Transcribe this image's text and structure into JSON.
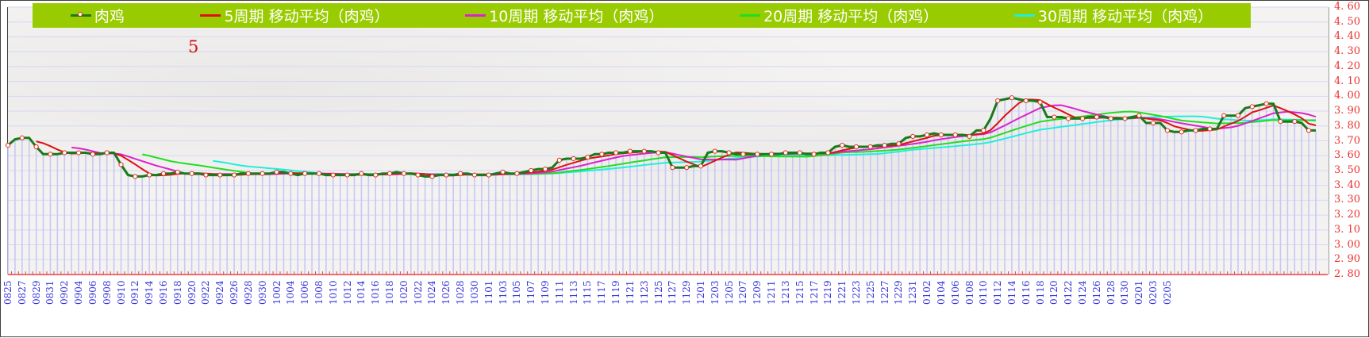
{
  "legend": {
    "items": [
      {
        "label": "肉鸡",
        "color": "#1a7a1a",
        "marker": true
      },
      {
        "label": "5周期 移动平均（肉鸡）",
        "color": "#dd1111",
        "marker": false
      },
      {
        "label": "10周期 移动平均（肉鸡）",
        "color": "#dd22cc",
        "marker": false
      },
      {
        "label": "20周期 移动平均（肉鸡）",
        "color": "#22dd22",
        "marker": false
      },
      {
        "label": "30周期 移动平均（肉鸡）",
        "color": "#22eedd",
        "marker": false
      }
    ],
    "background": "#99cc00"
  },
  "annotation": "5",
  "colors": {
    "price_line": "#1a7a1a",
    "marker_fill": "#ffffff",
    "marker_stroke": "#e03020",
    "bar": "#c8c8f4",
    "grid": "#d6d6f6",
    "y_tick": "#ee3030",
    "x_tick": "#3333dd",
    "ma5": "#dd1111",
    "ma10": "#dd22cc",
    "ma20": "#22dd22",
    "ma30": "#22eedd"
  },
  "chart_data": {
    "type": "line",
    "title": "",
    "xlabel": "",
    "ylabel": "",
    "ylim": [
      2.8,
      4.6
    ],
    "yticks": [
      "4.60",
      "4.50",
      "4.40",
      "4.30",
      "4.20",
      "4.10",
      "4.00",
      "3.90",
      "3.80",
      "3.70",
      "3.60",
      "3.50",
      "3.40",
      "3.30",
      "3.20",
      "3.10",
      "3.00",
      "2.90",
      "2.80"
    ],
    "grid": true,
    "legend_position": "top",
    "x_tick_labels": [
      "0825",
      "0827",
      "0829",
      "0831",
      "0902",
      "0904",
      "0906",
      "0908",
      "0910",
      "0912",
      "0914",
      "0916",
      "0918",
      "0920",
      "0922",
      "0924",
      "0926",
      "0928",
      "0930",
      "1002",
      "1004",
      "1006",
      "1008",
      "1010",
      "1012",
      "1014",
      "1016",
      "1018",
      "1020",
      "1022",
      "1024",
      "1026",
      "1028",
      "1030",
      "1101",
      "1103",
      "1105",
      "1107",
      "1109",
      "1111",
      "1113",
      "1115",
      "1117",
      "1119",
      "1121",
      "1123",
      "1125",
      "1127",
      "1129",
      "1201",
      "1203",
      "1205",
      "1207",
      "1209",
      "1211",
      "1213",
      "1215",
      "1217",
      "1219",
      "1221",
      "1223",
      "1225",
      "1227",
      "1229",
      "1231",
      "0102",
      "0104",
      "0106",
      "0108",
      "0110",
      "0112",
      "0114",
      "0116",
      "0118",
      "0120",
      "0122",
      "0124",
      "0126",
      "0128",
      "0130",
      "0201",
      "0203",
      "0205"
    ],
    "series": [
      {
        "name": "肉鸡",
        "values": [
          3.67,
          3.71,
          3.72,
          3.72,
          3.66,
          3.61,
          3.61,
          3.61,
          3.62,
          3.62,
          3.62,
          3.62,
          3.61,
          3.61,
          3.62,
          3.62,
          3.54,
          3.47,
          3.46,
          3.46,
          3.47,
          3.47,
          3.48,
          3.48,
          3.49,
          3.48,
          3.48,
          3.48,
          3.47,
          3.47,
          3.47,
          3.47,
          3.47,
          3.48,
          3.48,
          3.48,
          3.48,
          3.48,
          3.49,
          3.49,
          3.48,
          3.47,
          3.48,
          3.48,
          3.48,
          3.47,
          3.47,
          3.47,
          3.47,
          3.47,
          3.48,
          3.47,
          3.47,
          3.48,
          3.48,
          3.49,
          3.48,
          3.48,
          3.47,
          3.46,
          3.46,
          3.47,
          3.47,
          3.47,
          3.48,
          3.48,
          3.47,
          3.47,
          3.47,
          3.48,
          3.49,
          3.48,
          3.48,
          3.49,
          3.5,
          3.51,
          3.51,
          3.52,
          3.57,
          3.58,
          3.58,
          3.58,
          3.59,
          3.61,
          3.61,
          3.62,
          3.62,
          3.62,
          3.63,
          3.63,
          3.63,
          3.63,
          3.62,
          3.62,
          3.52,
          3.52,
          3.52,
          3.53,
          3.53,
          3.62,
          3.63,
          3.63,
          3.62,
          3.61,
          3.61,
          3.61,
          3.61,
          3.61,
          3.61,
          3.61,
          3.62,
          3.62,
          3.62,
          3.61,
          3.61,
          3.62,
          3.62,
          3.66,
          3.67,
          3.66,
          3.66,
          3.66,
          3.66,
          3.67,
          3.67,
          3.68,
          3.68,
          3.72,
          3.73,
          3.73,
          3.74,
          3.75,
          3.74,
          3.74,
          3.74,
          3.74,
          3.73,
          3.77,
          3.77,
          3.85,
          3.97,
          3.98,
          3.99,
          3.98,
          3.97,
          3.97,
          3.96,
          3.86,
          3.86,
          3.86,
          3.85,
          3.85,
          3.85,
          3.86,
          3.86,
          3.86,
          3.85,
          3.85,
          3.85,
          3.86,
          3.87,
          3.82,
          3.82,
          3.82,
          3.77,
          3.76,
          3.76,
          3.77,
          3.77,
          3.78,
          3.78,
          3.78,
          3.87,
          3.87,
          3.87,
          3.92,
          3.93,
          3.94,
          3.95,
          3.95,
          3.83,
          3.83,
          3.83,
          3.82,
          3.77,
          3.77
        ]
      },
      {
        "name": "5周期 移动平均（肉鸡）",
        "values": "computed: 5-point trailing mean of 肉鸡"
      },
      {
        "name": "10周期 移动平均（肉鸡）",
        "values": "computed: 10-point trailing mean of 肉鸡"
      },
      {
        "name": "20周期 移动平均（肉鸡）",
        "values": "computed: 20-point trailing mean of 肉鸡"
      },
      {
        "name": "30周期 移动平均（肉鸡）",
        "values": "computed: 30-point trailing mean of 肉鸡"
      }
    ]
  }
}
